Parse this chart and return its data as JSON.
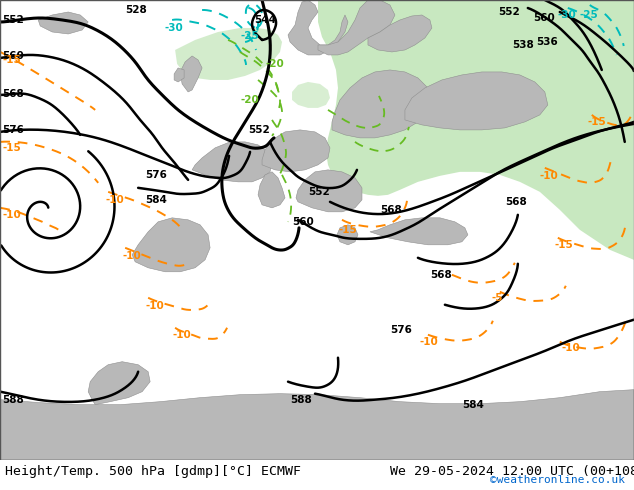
{
  "title_left": "Height/Temp. 500 hPa [gdmp][°C] ECMWF",
  "title_right": "We 29-05-2024 12:00 UTC (00+108)",
  "credit": "©weatheronline.co.uk",
  "credit_color": "#0066cc",
  "bg_light": "#e0e0e0",
  "bg_sea": "#d8d8d8",
  "green_color": "#c8e8c0",
  "land_color": "#b8b8b8",
  "contour_black": "#000000",
  "contour_orange": "#ff8800",
  "contour_cyan": "#00bbbb",
  "contour_green": "#66bb22",
  "label_black": "#000000",
  "label_orange": "#ff8800",
  "label_cyan": "#00bbbb",
  "label_green": "#66bb22",
  "font_size_title": 9.5,
  "font_size_label": 7.5,
  "font_size_credit": 8
}
